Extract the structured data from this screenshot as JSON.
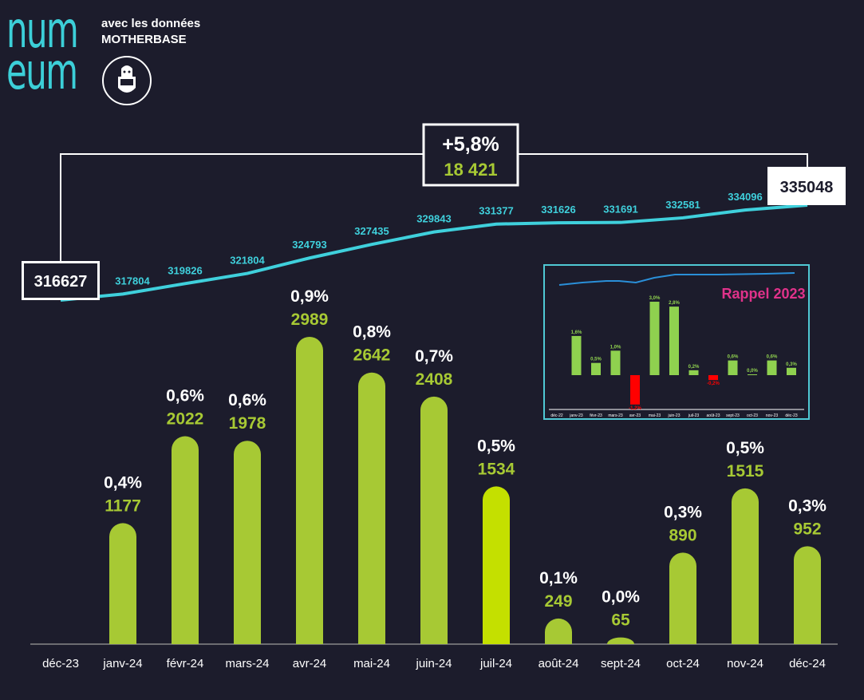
{
  "header": {
    "logo_line1": "num",
    "logo_line2": "eum",
    "subtitle_line1": "avec les données",
    "subtitle_line2": "MOTHERBASE"
  },
  "colors": {
    "bar": "#a7c934",
    "bar_highlight": "#c4e000",
    "line": "#3fd0dc",
    "pct": "#ffffff",
    "value": "#a7c934",
    "negative": "#ff0000",
    "rappel": "#e0328a"
  },
  "chart_data": {
    "type": "bar",
    "categories": [
      "déc-23",
      "janv-24",
      "févr-24",
      "mars-24",
      "avr-24",
      "mai-24",
      "juin-24",
      "juil-24",
      "août-24",
      "sept-24",
      "oct-24",
      "nov-24",
      "déc-24"
    ],
    "series": [
      {
        "values": [
          null,
          1177,
          2022,
          1978,
          2989,
          2642,
          2408,
          1534,
          249,
          65,
          890,
          1515,
          952
        ]
      },
      {
        "type": "line",
        "values": [
          316627,
          317804,
          319826,
          321804,
          324793,
          327435,
          329843,
          331377,
          331626,
          331691,
          332581,
          334096,
          335048
        ]
      }
    ],
    "pct_labels": [
      null,
      "0,4%",
      "0,6%",
      "0,6%",
      "0,9%",
      "0,8%",
      "0,7%",
      "0,5%",
      "0,1%",
      "0,0%",
      "0,3%",
      "0,5%",
      "0,3%"
    ],
    "total": {
      "pct": "+5,8%",
      "delta": "18 421",
      "start": "316627",
      "end": "335048"
    },
    "highlight_category": "juil-24",
    "inset": {
      "title": "Rappel 2023",
      "categories": [
        "déc-22",
        "janv-23",
        "févr-23",
        "mars-23",
        "avr-23",
        "mai-23",
        "juin-23",
        "juil-23",
        "août-23",
        "sept-23",
        "oct-23",
        "nov-23",
        "déc-23"
      ],
      "values": [
        null,
        1.6,
        0.5,
        1.0,
        -1.2,
        3.0,
        2.8,
        0.2,
        -0.2,
        0.6,
        0.0,
        0.6,
        0.3
      ],
      "labels": [
        null,
        "1,6%",
        "0,5%",
        "1,0%",
        "-1,2%",
        "3,0%",
        "2,8%",
        "0,2%",
        "-0,2%",
        "0,6%",
        "0,0%",
        "0,6%",
        "0,3%"
      ]
    }
  }
}
